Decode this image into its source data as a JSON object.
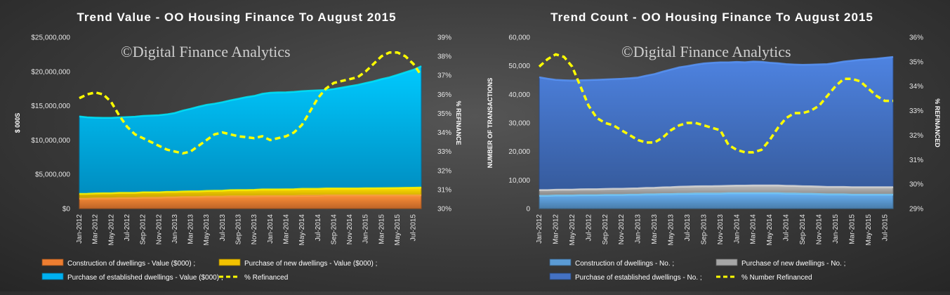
{
  "chart_data": [
    {
      "type": "area",
      "title": "Trend Value - OO Housing Finance To August 2015",
      "watermark": "©Digital Finance Analytics",
      "ylabel": "$ 000S",
      "y2label": "% REFINANCE",
      "ylim": [
        0,
        25000000
      ],
      "y2lim": [
        30,
        39
      ],
      "y_ticks": [
        "$0",
        "$5,000,000",
        "$10,000,000",
        "$15,000,000",
        "$20,000,000",
        "$25,000,000"
      ],
      "y2_ticks": [
        "30%",
        "31%",
        "32%",
        "33%",
        "34%",
        "35%",
        "36%",
        "37%",
        "38%",
        "39%"
      ],
      "x_tick_labels": [
        "Jan-2012",
        "Mar-2012",
        "May-2012",
        "Jul-2012",
        "Sep-2012",
        "Nov-2012",
        "Jan-2013",
        "Mar-2013",
        "May-2013",
        "Jul-2013",
        "Sep-2013",
        "Nov-2013",
        "Jan-2014",
        "Mar-2014",
        "May-2014",
        "Jul-2014",
        "Sep-2014",
        "Nov-2014",
        "Jan-2015",
        "Mar-2015",
        "May-2015",
        "Jul-2015"
      ],
      "x_count": 44,
      "series": [
        {
          "name": "Construction of dwellings - Value ($000) ;",
          "color": "#ed7d31",
          "values": [
            1450000,
            1450000,
            1500000,
            1500000,
            1500000,
            1550000,
            1550000,
            1550000,
            1600000,
            1600000,
            1600000,
            1650000,
            1650000,
            1700000,
            1700000,
            1700000,
            1750000,
            1750000,
            1750000,
            1800000,
            1800000,
            1800000,
            1800000,
            1850000,
            1850000,
            1850000,
            1850000,
            1850000,
            1900000,
            1900000,
            1900000,
            1950000,
            1950000,
            1950000,
            1950000,
            1950000,
            1950000,
            1950000,
            1950000,
            1950000,
            1950000,
            1950000,
            1950000,
            1950000
          ]
        },
        {
          "name": "Purchase of new dwellings - Value ($000) ;",
          "color": "#f2c200",
          "values": [
            700000,
            720000,
            720000,
            740000,
            740000,
            760000,
            760000,
            760000,
            780000,
            780000,
            780000,
            800000,
            800000,
            800000,
            820000,
            820000,
            840000,
            860000,
            880000,
            900000,
            920000,
            920000,
            940000,
            950000,
            960000,
            960000,
            970000,
            980000,
            990000,
            1000000,
            1000000,
            1000000,
            1000000,
            1000000,
            1000000,
            1000000,
            1020000,
            1020000,
            1040000,
            1050000,
            1060000,
            1080000,
            1100000,
            1120000
          ]
        },
        {
          "name": "Purchase of established dwellings - Value ($000) ;",
          "color": "#00b0f0",
          "values": [
            11300000,
            11150000,
            11050000,
            11000000,
            11000000,
            11000000,
            11050000,
            11100000,
            11150000,
            11200000,
            11250000,
            11300000,
            11500000,
            11800000,
            12050000,
            12350000,
            12550000,
            12700000,
            12900000,
            13100000,
            13300000,
            13550000,
            13700000,
            13950000,
            14100000,
            14150000,
            14150000,
            14200000,
            14250000,
            14300000,
            14350000,
            14350000,
            14500000,
            14700000,
            14900000,
            15100000,
            15350000,
            15600000,
            15900000,
            16150000,
            16500000,
            16850000,
            17200000,
            17700000
          ]
        },
        {
          "name": "% Refinanced",
          "color": "#ffff00",
          "axis": "secondary",
          "values": [
            35.8,
            36.0,
            36.1,
            36.0,
            35.6,
            34.9,
            34.3,
            33.9,
            33.7,
            33.5,
            33.3,
            33.1,
            33.0,
            32.9,
            33.0,
            33.3,
            33.6,
            33.9,
            34.0,
            33.9,
            33.8,
            33.75,
            33.7,
            33.8,
            33.6,
            33.7,
            33.8,
            34.0,
            34.4,
            35.1,
            35.8,
            36.3,
            36.6,
            36.7,
            36.8,
            36.9,
            37.2,
            37.6,
            38.0,
            38.2,
            38.2,
            38.0,
            37.6,
            37.0
          ]
        }
      ]
    },
    {
      "type": "area",
      "title": "Trend Count - OO Housing Finance To August 2015",
      "watermark": "©Digital Finance Analytics",
      "ylabel": "NUMBER OF TRANSACTIONS",
      "y2label": "% REFINANCED",
      "ylim": [
        0,
        60000
      ],
      "y2lim": [
        29,
        36
      ],
      "y_ticks": [
        "0",
        "10,000",
        "20,000",
        "30,000",
        "40,000",
        "50,000",
        "60,000"
      ],
      "y2_ticks": [
        "29%",
        "30%",
        "31%",
        "32%",
        "33%",
        "34%",
        "35%",
        "36%"
      ],
      "x_tick_labels": [
        "Jan-2012",
        "Mar-2012",
        "May-2012",
        "Jul-2012",
        "Sep-2012",
        "Nov-2012",
        "Jan-2013",
        "Mar-2013",
        "May-2013",
        "Jul-2013",
        "Sep-2013",
        "Nov-2013",
        "Jan-2014",
        "Mar-2014",
        "May-2014",
        "Jul-2014",
        "Sep-2014",
        "Nov-2014",
        "Jan-2015",
        "Mar-2015",
        "May-2015",
        "Jul-2015"
      ],
      "x_count": 44,
      "series": [
        {
          "name": "Construction of dwellings - No. ;",
          "color": "#5b9bd5",
          "values": [
            4500,
            4500,
            4600,
            4600,
            4600,
            4700,
            4700,
            4700,
            4800,
            4800,
            4800,
            4900,
            4900,
            5000,
            5000,
            5100,
            5100,
            5200,
            5200,
            5300,
            5300,
            5300,
            5300,
            5400,
            5400,
            5400,
            5400,
            5400,
            5400,
            5400,
            5300,
            5300,
            5200,
            5200,
            5100,
            5000,
            5000,
            5000,
            4900,
            4900,
            4900,
            4900,
            4900,
            4900
          ]
        },
        {
          "name": "Purchase of new dwellings - No. ;",
          "color": "#a6a6a6",
          "values": [
            2000,
            2000,
            2000,
            2050,
            2050,
            2050,
            2100,
            2100,
            2100,
            2150,
            2150,
            2150,
            2200,
            2250,
            2300,
            2350,
            2400,
            2450,
            2500,
            2500,
            2550,
            2550,
            2600,
            2600,
            2650,
            2650,
            2700,
            2700,
            2700,
            2700,
            2700,
            2650,
            2650,
            2600,
            2600,
            2600,
            2600,
            2600,
            2600,
            2600,
            2600,
            2600,
            2600,
            2600
          ]
        },
        {
          "name": "Purchase of established dwellings - No. ;",
          "color": "#4472c4",
          "values": [
            39500,
            39000,
            38500,
            38300,
            38200,
            38200,
            38200,
            38300,
            38300,
            38400,
            38500,
            38600,
            38800,
            39300,
            39800,
            40500,
            41200,
            41800,
            42200,
            42600,
            43000,
            43200,
            43300,
            43200,
            43300,
            43200,
            43400,
            43300,
            43000,
            42800,
            42600,
            42500,
            42500,
            42600,
            42800,
            43000,
            43400,
            43900,
            44300,
            44600,
            44800,
            45000,
            45300,
            45600
          ]
        },
        {
          "name": "% Number Refinanced",
          "color": "#ffff00",
          "axis": "secondary",
          "values": [
            34.8,
            35.1,
            35.3,
            35.2,
            34.8,
            34.0,
            33.2,
            32.7,
            32.5,
            32.4,
            32.2,
            32.0,
            31.8,
            31.7,
            31.7,
            31.9,
            32.2,
            32.4,
            32.5,
            32.5,
            32.4,
            32.3,
            32.2,
            31.6,
            31.4,
            31.3,
            31.3,
            31.4,
            31.8,
            32.3,
            32.7,
            32.9,
            32.9,
            33.0,
            33.2,
            33.6,
            34.0,
            34.3,
            34.3,
            34.2,
            33.9,
            33.6,
            33.4,
            33.4
          ]
        }
      ]
    }
  ]
}
